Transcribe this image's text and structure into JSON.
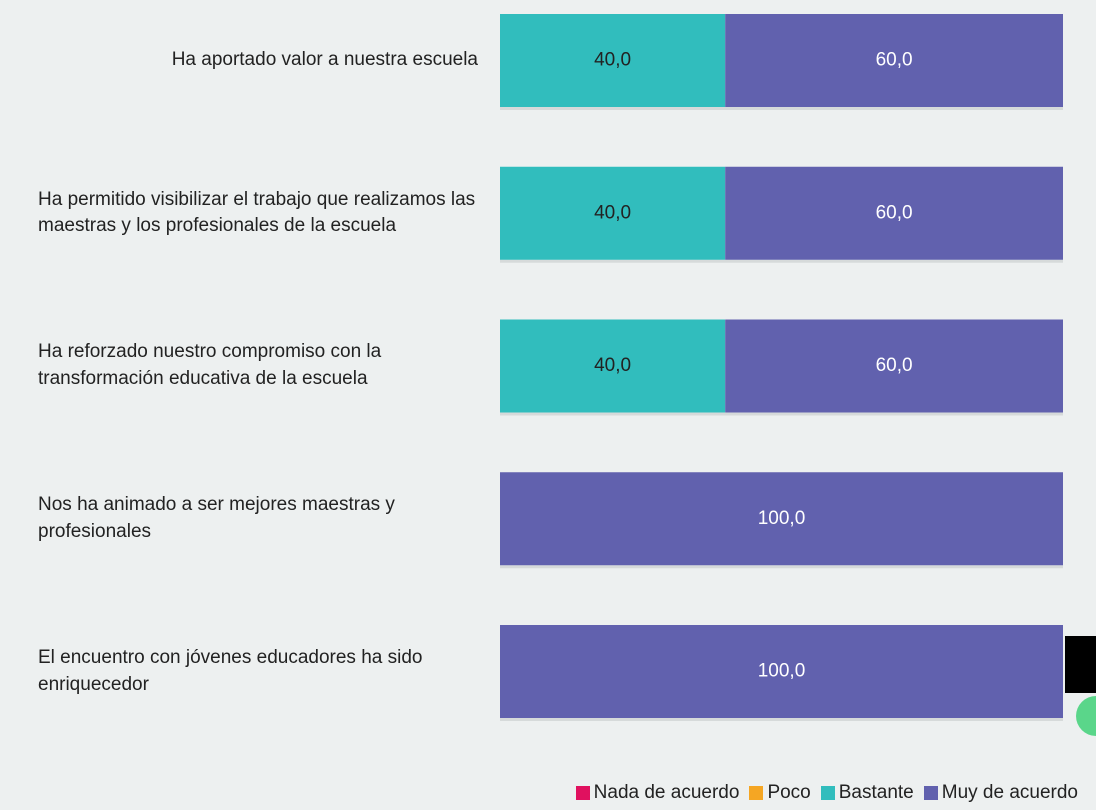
{
  "chart_data": {
    "type": "stacked-bar-horizontal",
    "categories": [
      "Ha aportado valor a nuestra escuela",
      "Ha permitido visibilizar el trabajo que realizamos las maestras y los profesionales de la escuela",
      "Ha reforzado nuestro compromiso con la transformación educativa de la escuela",
      "Nos ha animado a ser mejores maestras y profesionales",
      "El encuentro con jóvenes educadores ha sido enriquecedor"
    ],
    "series": [
      {
        "name": "Nada de acuerdo",
        "color": "#e0115f",
        "values": [
          0,
          0,
          0,
          0,
          0
        ]
      },
      {
        "name": "Poco",
        "color": "#f5a623",
        "values": [
          0,
          0,
          0,
          0,
          0
        ]
      },
      {
        "name": "Bastante",
        "color": "#31bdbd",
        "values": [
          40,
          40,
          40,
          0,
          0
        ],
        "value_labels": [
          "40,0",
          "40,0",
          "40,0",
          null,
          null
        ]
      },
      {
        "name": "Muy de acuerdo",
        "color": "#6161ae",
        "values": [
          60,
          60,
          60,
          100,
          100
        ],
        "value_labels": [
          "60,0",
          "60,0",
          "60,0",
          "100,0",
          "100,0"
        ]
      }
    ],
    "xlim": [
      0,
      100
    ],
    "legend": "bottom-right"
  }
}
